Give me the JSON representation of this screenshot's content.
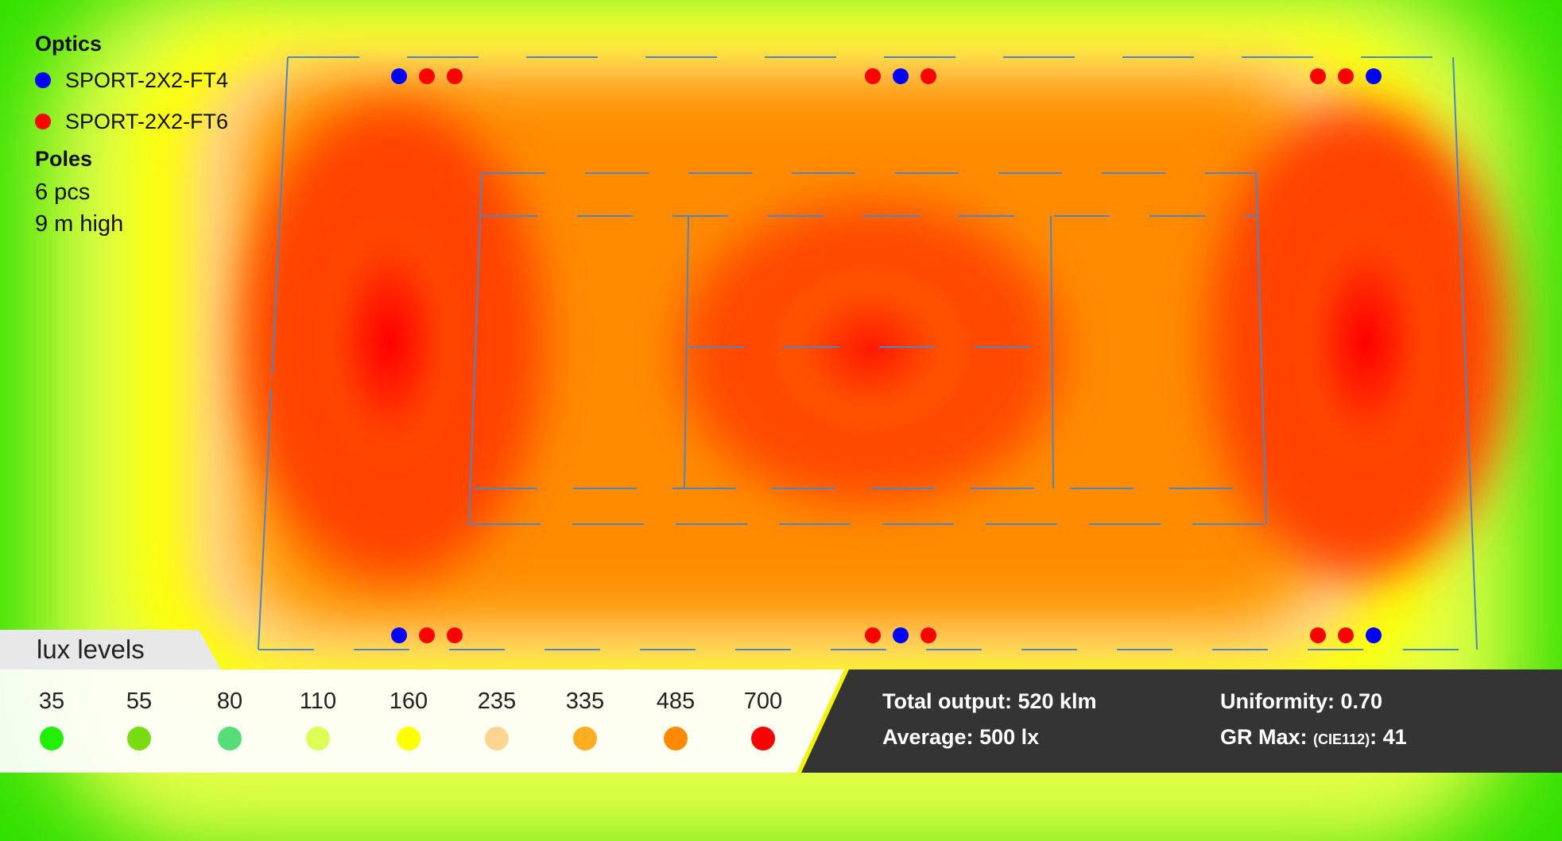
{
  "optics": {
    "heading": "Optics",
    "items": [
      {
        "label": "SPORT-2X2-FT4",
        "color": "#0000ff"
      },
      {
        "label": "SPORT-2X2-FT6",
        "color": "#ff0000"
      }
    ]
  },
  "poles": {
    "heading": "Poles",
    "count": "6 pcs",
    "height": "9 m high"
  },
  "lux_levels": {
    "title": "lux levels",
    "items": [
      {
        "value": "35",
        "color": "#22ee00"
      },
      {
        "value": "55",
        "color": "#77dd11"
      },
      {
        "value": "80",
        "color": "#55dd77"
      },
      {
        "value": "110",
        "color": "#ddff55"
      },
      {
        "value": "160",
        "color": "#ffff00"
      },
      {
        "value": "235",
        "color": "#ffd592"
      },
      {
        "value": "335",
        "color": "#ffae22"
      },
      {
        "value": "485",
        "color": "#ff8a00"
      },
      {
        "value": "700",
        "color": "#ff0000"
      }
    ]
  },
  "stats": {
    "total_output_label": "Total output:",
    "total_output_value": "520 klm",
    "average_label": "Average:",
    "average_value": "500 lx",
    "uniformity_label": "Uniformity:",
    "uniformity_value": "0.70",
    "gr_max_label": "GR Max:",
    "gr_max_standard": "(CIE112)",
    "gr_max_value": "41"
  },
  "luminaire_groups": [
    {
      "position": "top-left",
      "optics": [
        "SPORT-2X2-FT4",
        "SPORT-2X2-FT6",
        "SPORT-2X2-FT6"
      ]
    },
    {
      "position": "top-center",
      "optics": [
        "SPORT-2X2-FT6",
        "SPORT-2X2-FT4",
        "SPORT-2X2-FT6"
      ]
    },
    {
      "position": "top-right",
      "optics": [
        "SPORT-2X2-FT6",
        "SPORT-2X2-FT6",
        "SPORT-2X2-FT4"
      ]
    },
    {
      "position": "bottom-left",
      "optics": [
        "SPORT-2X2-FT4",
        "SPORT-2X2-FT6",
        "SPORT-2X2-FT6"
      ]
    },
    {
      "position": "bottom-center",
      "optics": [
        "SPORT-2X2-FT6",
        "SPORT-2X2-FT4",
        "SPORT-2X2-FT6"
      ]
    },
    {
      "position": "bottom-right",
      "optics": [
        "SPORT-2X2-FT6",
        "SPORT-2X2-FT6",
        "SPORT-2X2-FT4"
      ]
    }
  ]
}
